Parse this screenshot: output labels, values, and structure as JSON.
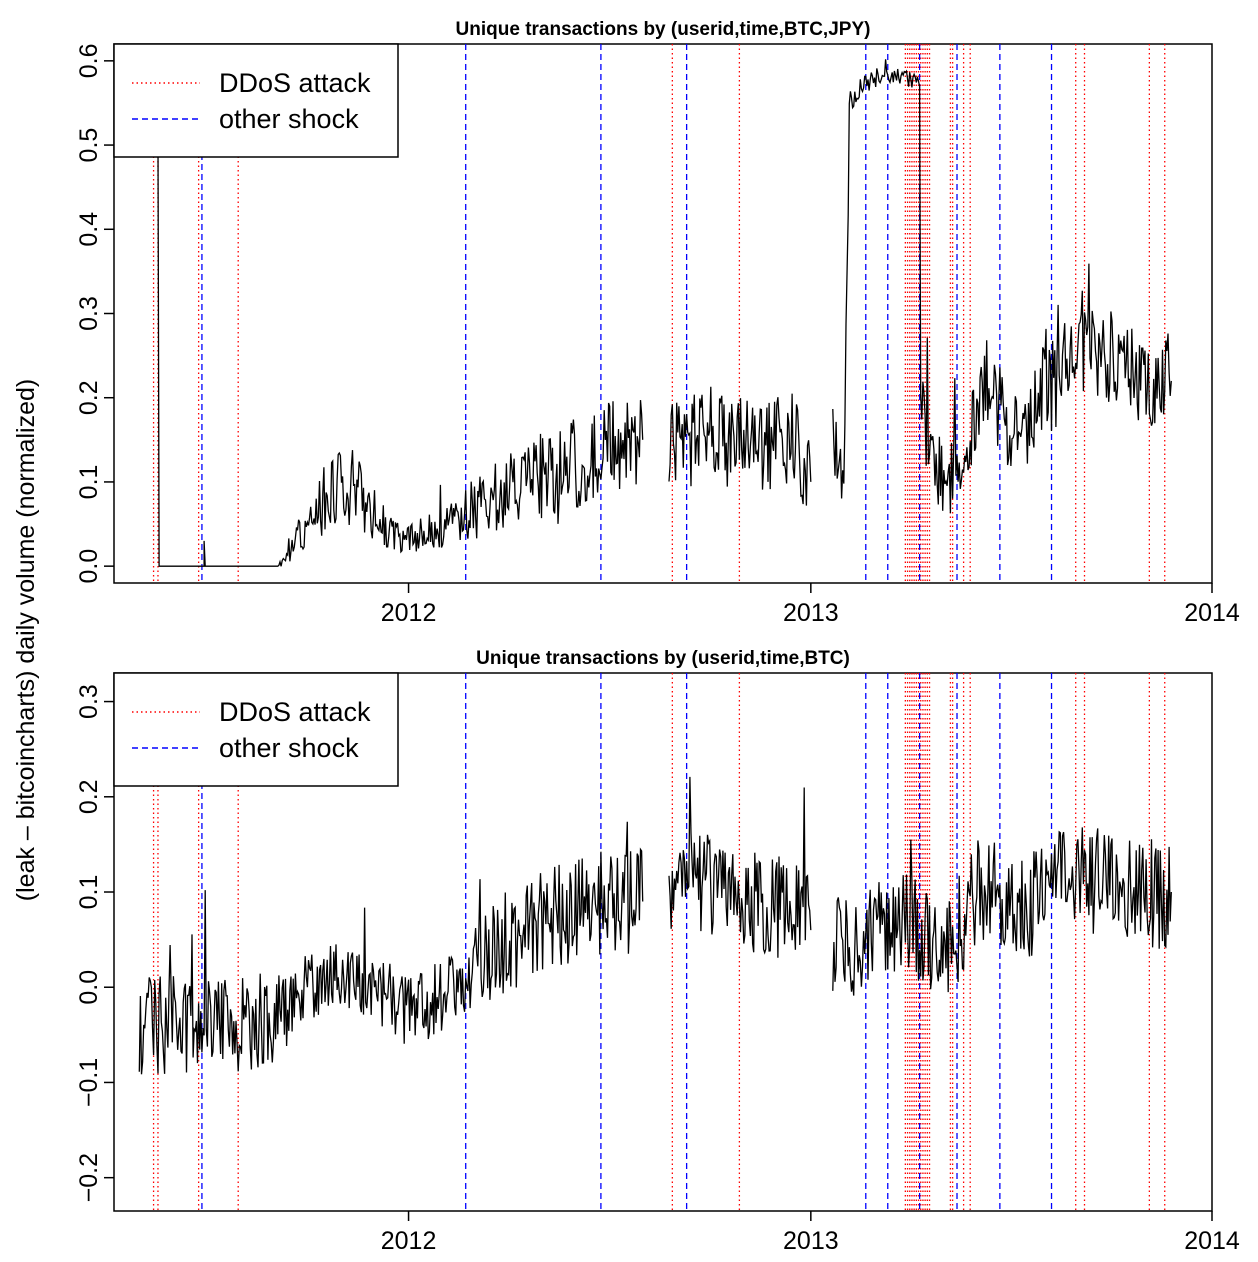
{
  "figure": {
    "ylabel": "(leak – bitcoincharts) daily volume (normalized)",
    "legend": [
      {
        "label": "DDoS attack",
        "color": "#ff0000",
        "style": "dotted"
      },
      {
        "label": "other shock",
        "color": "#0000ff",
        "style": "dashed"
      }
    ]
  },
  "chart_data": [
    {
      "type": "line",
      "title": "Unique transactions by (userid,time,BTC,JPY)",
      "xlabel": "",
      "ylabel": "(leak – bitcoincharts) daily volume (normalized)",
      "xlim": [
        "2011-04-08",
        "2014-01-01"
      ],
      "ylim": [
        -0.02,
        0.62
      ],
      "x_ticks": [
        "2012",
        "2013",
        "2014"
      ],
      "y_ticks": [
        0.0,
        0.1,
        0.2,
        0.3,
        0.4,
        0.5,
        0.6
      ],
      "y_tick_labels": [
        "0.0",
        "0.1",
        "0.2",
        "0.3",
        "0.4",
        "0.5",
        "0.6"
      ],
      "legend_position": "top-left",
      "grid": false,
      "series": [
        {
          "color": "#000000",
          "segments": [
            [
              [
                "2011-04-08",
                0.5
              ],
              [
                "2011-05-18",
                0.5
              ],
              [
                "2011-05-19",
                0.0
              ],
              [
                "2011-06-29",
                0.0
              ],
              [
                "2011-06-29",
                0.03
              ],
              [
                "2011-06-30",
                0.0
              ],
              [
                "2011-09-04",
                0.0
              ],
              [
                "2011-09-12",
                0.01
              ],
              [
                "2011-09-20",
                0.03
              ],
              [
                "2011-10-01",
                0.05
              ],
              [
                "2011-10-10",
                0.07
              ],
              [
                "2011-10-20",
                0.09
              ],
              [
                "2011-11-01",
                0.1
              ],
              [
                "2011-11-15",
                0.09
              ],
              [
                "2011-12-01",
                0.06
              ],
              [
                "2011-12-15",
                0.04
              ],
              [
                "2012-01-01",
                0.03
              ],
              [
                "2012-01-20",
                0.04
              ],
              [
                "2012-02-10",
                0.05
              ],
              [
                "2012-03-01",
                0.07
              ],
              [
                "2012-04-01",
                0.09
              ],
              [
                "2012-05-01",
                0.11
              ],
              [
                "2012-06-01",
                0.12
              ],
              [
                "2012-07-01",
                0.14
              ],
              [
                "2012-08-01",
                0.15
              ]
            ],
            [
              [
                "2012-08-25",
                0.14
              ],
              [
                "2012-09-15",
                0.15
              ],
              [
                "2012-10-15",
                0.15
              ],
              [
                "2012-11-15",
                0.14
              ],
              [
                "2012-12-15",
                0.15
              ],
              [
                "2013-01-01",
                0.1
              ]
            ],
            [
              [
                "2013-01-21",
                0.14
              ],
              [
                "2013-02-01",
                0.13
              ],
              [
                "2013-02-05",
                0.55
              ],
              [
                "2013-02-15",
                0.57
              ],
              [
                "2013-03-01",
                0.58
              ],
              [
                "2013-03-15",
                0.58
              ],
              [
                "2013-04-01",
                0.58
              ],
              [
                "2013-04-10",
                0.57
              ],
              [
                "2013-04-11",
                0.2
              ],
              [
                "2013-04-20",
                0.14
              ],
              [
                "2013-05-01",
                0.11
              ],
              [
                "2013-05-15",
                0.12
              ],
              [
                "2013-06-01",
                0.19
              ],
              [
                "2013-06-15",
                0.2
              ],
              [
                "2013-07-01",
                0.17
              ],
              [
                "2013-07-15",
                0.15
              ],
              [
                "2013-08-01",
                0.21
              ],
              [
                "2013-08-15",
                0.22
              ],
              [
                "2013-09-01",
                0.26
              ],
              [
                "2013-09-15",
                0.25
              ],
              [
                "2013-10-01",
                0.25
              ],
              [
                "2013-10-15",
                0.24
              ],
              [
                "2013-11-01",
                0.22
              ],
              [
                "2013-11-15",
                0.21
              ],
              [
                "2013-11-25",
                0.22
              ]
            ]
          ]
        }
      ],
      "ddos_attacks": [
        "2011-05-14",
        "2011-05-18",
        "2011-06-24",
        "2011-07-30",
        "2012-08-28",
        "2012-10-28",
        "2013-03-28",
        "2013-03-30",
        "2013-04-01",
        "2013-04-03",
        "2013-04-05",
        "2013-04-07",
        "2013-04-09",
        "2013-04-11",
        "2013-04-13",
        "2013-04-15",
        "2013-04-17",
        "2013-04-19",
        "2013-05-08",
        "2013-05-10",
        "2013-05-20",
        "2013-05-26",
        "2013-08-30",
        "2013-09-07",
        "2013-11-05",
        "2013-11-19"
      ],
      "other_shocks": [
        "2011-06-27",
        "2012-02-22",
        "2012-06-24",
        "2012-09-10",
        "2013-02-20",
        "2013-03-12",
        "2013-04-10",
        "2013-05-14",
        "2013-06-22",
        "2013-08-08"
      ]
    },
    {
      "type": "line",
      "title": "Unique transactions by (userid,time,BTC)",
      "xlabel": "",
      "ylabel": "(leak – bitcoincharts) daily volume (normalized)",
      "xlim": [
        "2011-04-08",
        "2014-01-01"
      ],
      "ylim": [
        -0.235,
        0.33
      ],
      "x_ticks": [
        "2012",
        "2013",
        "2014"
      ],
      "y_ticks": [
        -0.2,
        -0.1,
        0.0,
        0.1,
        0.2,
        0.3
      ],
      "y_tick_labels": [
        "−0.2",
        "−0.1",
        "0.0",
        "0.1",
        "0.2",
        "0.3"
      ],
      "legend_position": "top-left",
      "grid": false,
      "series": [
        {
          "color": "#000000",
          "segments": [
            [
              [
                "2011-05-01",
                -0.04
              ],
              [
                "2011-06-01",
                -0.04
              ],
              [
                "2011-07-01",
                -0.04
              ],
              [
                "2011-08-01",
                -0.04
              ],
              [
                "2011-09-01",
                -0.03
              ],
              [
                "2011-10-01",
                0.0
              ],
              [
                "2011-11-01",
                0.01
              ],
              [
                "2011-12-01",
                0.0
              ],
              [
                "2012-01-01",
                -0.02
              ],
              [
                "2012-02-01",
                -0.01
              ],
              [
                "2012-03-01",
                0.02
              ],
              [
                "2012-04-01",
                0.05
              ],
              [
                "2012-05-01",
                0.07
              ],
              [
                "2012-06-01",
                0.08
              ],
              [
                "2012-07-01",
                0.09
              ],
              [
                "2012-08-01",
                0.09
              ]
            ],
            [
              [
                "2012-08-25",
                0.1
              ],
              [
                "2012-09-15",
                0.11
              ],
              [
                "2012-10-15",
                0.1
              ],
              [
                "2012-11-15",
                0.09
              ],
              [
                "2012-12-15",
                0.08
              ],
              [
                "2013-01-01",
                0.06
              ]
            ],
            [
              [
                "2013-01-21",
                0.04
              ],
              [
                "2013-02-15",
                0.05
              ],
              [
                "2013-03-15",
                0.06
              ],
              [
                "2013-04-01",
                0.07
              ],
              [
                "2013-04-15",
                0.05
              ],
              [
                "2013-05-01",
                0.04
              ],
              [
                "2013-05-15",
                0.06
              ],
              [
                "2013-06-01",
                0.1
              ],
              [
                "2013-06-15",
                0.1
              ],
              [
                "2013-07-01",
                0.08
              ],
              [
                "2013-07-15",
                0.08
              ],
              [
                "2013-08-01",
                0.1
              ],
              [
                "2013-08-15",
                0.12
              ],
              [
                "2013-09-01",
                0.12
              ],
              [
                "2013-09-15",
                0.11
              ],
              [
                "2013-10-01",
                0.12
              ],
              [
                "2013-10-15",
                0.1
              ],
              [
                "2013-11-01",
                0.1
              ],
              [
                "2013-11-15",
                0.09
              ],
              [
                "2013-11-25",
                0.1
              ]
            ]
          ]
        }
      ],
      "ddos_attacks": [
        "2011-05-14",
        "2011-05-18",
        "2011-06-24",
        "2011-07-30",
        "2012-08-28",
        "2012-10-28",
        "2013-03-28",
        "2013-03-30",
        "2013-04-01",
        "2013-04-03",
        "2013-04-05",
        "2013-04-07",
        "2013-04-09",
        "2013-04-11",
        "2013-04-13",
        "2013-04-15",
        "2013-04-17",
        "2013-04-19",
        "2013-05-08",
        "2013-05-10",
        "2013-05-20",
        "2013-05-26",
        "2013-08-30",
        "2013-09-07",
        "2013-11-05",
        "2013-11-19"
      ],
      "other_shocks": [
        "2011-06-27",
        "2012-02-22",
        "2012-06-24",
        "2012-09-10",
        "2013-02-20",
        "2013-03-12",
        "2013-04-10",
        "2013-05-14",
        "2013-06-22",
        "2013-08-08"
      ]
    }
  ]
}
